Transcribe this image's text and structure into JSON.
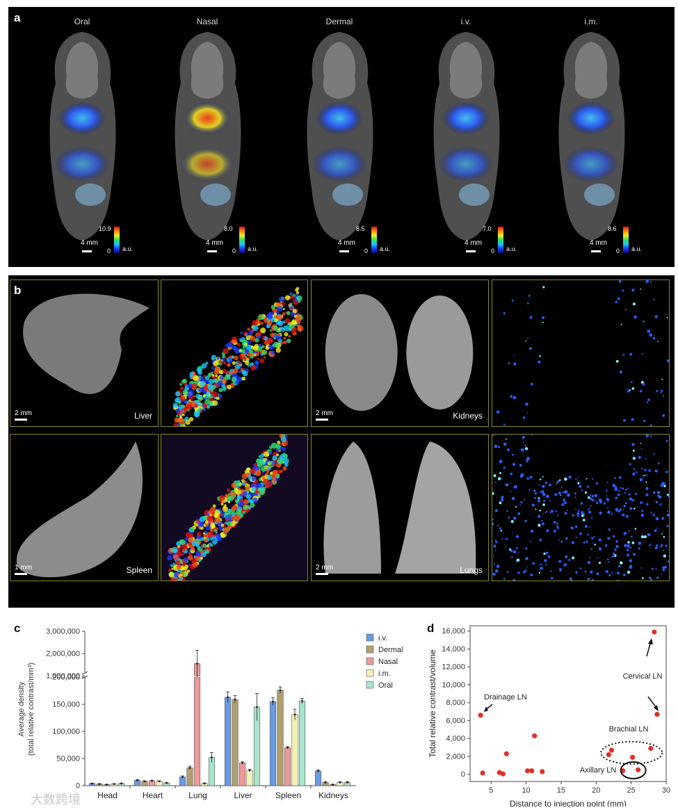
{
  "panel_a": {
    "label": "a",
    "mice": [
      {
        "route": "Oral",
        "max": "10.9",
        "min": "0",
        "unit": "a.u.",
        "scale": "4 mm"
      },
      {
        "route": "Nasal",
        "max": "8.0",
        "min": "0",
        "unit": "a.u.",
        "scale": "4 mm"
      },
      {
        "route": "Dermal",
        "max": "8.5",
        "min": "0",
        "unit": "a.u.",
        "scale": "4 mm"
      },
      {
        "route": "i.v.",
        "max": "7.0",
        "min": "0",
        "unit": "a.u.",
        "scale": "4 mm"
      },
      {
        "route": "i.m.",
        "max": "8.6",
        "min": "0",
        "unit": "a.u.",
        "scale": "4 mm"
      }
    ]
  },
  "panel_b": {
    "label": "b",
    "tiles": [
      {
        "organ": "Liver",
        "scale": "2 mm",
        "kind": "gray"
      },
      {
        "organ": "",
        "scale": "",
        "kind": "heat"
      },
      {
        "organ": "Kidneys",
        "scale": "2 mm",
        "kind": "gray"
      },
      {
        "organ": "",
        "scale": "",
        "kind": "dots"
      },
      {
        "organ": "Spleen",
        "scale": "1 mm",
        "kind": "gray"
      },
      {
        "organ": "",
        "scale": "",
        "kind": "heat"
      },
      {
        "organ": "Lungs",
        "scale": "2 mm",
        "kind": "gray"
      },
      {
        "organ": "",
        "scale": "",
        "kind": "dots"
      }
    ]
  },
  "chart_data": [
    {
      "panel": "c",
      "type": "bar",
      "ylabel_line1": "Average density",
      "ylabel_line2": "(total relative contrast/mm³)",
      "broken_axis": true,
      "ylim_lower": [
        0,
        200000
      ],
      "ylim_upper": [
        1000000,
        3000000
      ],
      "yticks_lower": [
        "0",
        "50,000",
        "100,000",
        "150,000",
        "200,000"
      ],
      "yticks_upper": [
        "1,000,000",
        "2,000,000",
        "3,000,000"
      ],
      "categories": [
        "Head",
        "Heart",
        "Lung",
        "Liver",
        "Spleen",
        "Kidneys"
      ],
      "series": [
        {
          "name": "i.v.",
          "color": "#6b9be0",
          "values": [
            4000,
            10000,
            16000,
            163000,
            155000,
            27000
          ]
        },
        {
          "name": "Dermal",
          "color": "#b0a070",
          "values": [
            3000,
            8000,
            33000,
            159000,
            176000,
            6000
          ]
        },
        {
          "name": "Nasal",
          "color": "#ec9a9a",
          "values": [
            2000,
            9000,
            1550000,
            42000,
            70000,
            2000
          ]
        },
        {
          "name": "i.m.",
          "color": "#f2f2b4",
          "values": [
            3000,
            8000,
            4000,
            28000,
            131000,
            6000
          ]
        },
        {
          "name": "Oral",
          "color": "#a8e4cc",
          "values": [
            4000,
            5000,
            52000,
            145000,
            156000,
            6000
          ]
        }
      ],
      "errors": [
        [
          500,
          1000,
          2000,
          10000,
          7000,
          2000
        ],
        [
          500,
          1000,
          3000,
          7000,
          6000,
          1500
        ],
        [
          500,
          1000,
          600000,
          2000,
          2000,
          500
        ],
        [
          500,
          1000,
          1000,
          2000,
          10000,
          1500
        ],
        [
          500,
          1000,
          9000,
          25000,
          5000,
          1500
        ]
      ]
    },
    {
      "panel": "d",
      "type": "scatter",
      "xlabel": "Distance to injection point (mm)",
      "ylabel": "Total relative contrast/volume",
      "xlim": [
        2,
        30
      ],
      "ylim": [
        -800,
        16600
      ],
      "xticks": [
        "5",
        "10",
        "15",
        "20",
        "25",
        "30"
      ],
      "yticks": [
        "0",
        "2,000",
        "4,000",
        "6,000",
        "8,000",
        "10,000",
        "12,000",
        "14,000",
        "16,000"
      ],
      "color": "#e0302a",
      "points": [
        [
          3.5,
          6600
        ],
        [
          3.8,
          150
        ],
        [
          6.2,
          200
        ],
        [
          6.7,
          50
        ],
        [
          7.2,
          2300
        ],
        [
          10.2,
          400
        ],
        [
          10.8,
          400
        ],
        [
          11.2,
          4300
        ],
        [
          12.3,
          300
        ],
        [
          21.8,
          2200
        ],
        [
          22.2,
          2700
        ],
        [
          23.8,
          400
        ],
        [
          25.2,
          1900
        ],
        [
          26,
          500
        ],
        [
          27.8,
          2900
        ],
        [
          28.3,
          15900
        ],
        [
          28.7,
          6700
        ]
      ],
      "annotations": [
        "Cervical LN",
        "Drainage LN",
        "Brachial LN",
        "Axillary LN"
      ]
    }
  ],
  "watermark": "大数跨境"
}
